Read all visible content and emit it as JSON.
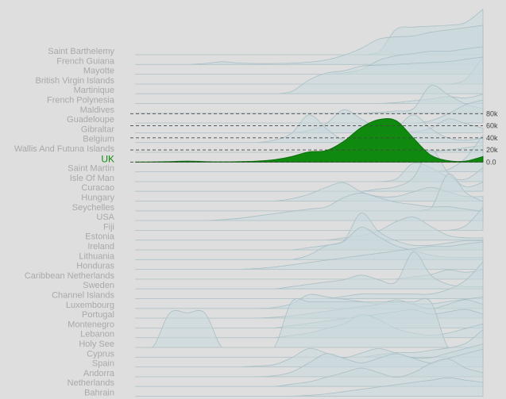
{
  "chart_data": {
    "type": "area",
    "highlighted": "UK",
    "y_ticks": [
      "0.0",
      "20k",
      "40k",
      "60k",
      "80k"
    ],
    "y_tick_values": [
      0,
      20000,
      40000,
      60000,
      80000
    ],
    "colors": {
      "background": "#dedede",
      "ridge": "#c9d9dd",
      "ridge_line": "#a9bfc5",
      "highlight": "#0f8a0f",
      "label": "#a9a9a9",
      "highlight_label": "#138a13"
    },
    "x": [
      0,
      0.05,
      0.1,
      0.15,
      0.2,
      0.25,
      0.3,
      0.35,
      0.4,
      0.45,
      0.5,
      0.55,
      0.6,
      0.65,
      0.7,
      0.75,
      0.8,
      0.85,
      0.9,
      0.95,
      1
    ],
    "series": [
      {
        "name": "Saint Barthelemy",
        "values": [
          0,
          0,
          0,
          0,
          0,
          0,
          0,
          0,
          0,
          0,
          0,
          0,
          0,
          0,
          0.05,
          0.55,
          0.6,
          0.62,
          0.64,
          0.7,
          0.99
        ]
      },
      {
        "name": "French Guiana",
        "values": [
          0,
          0,
          0,
          0,
          0.02,
          0.06,
          0.03,
          0.02,
          0.02,
          0.03,
          0.05,
          0.1,
          0.2,
          0.35,
          0.55,
          0.6,
          0.62,
          0.7,
          0.75,
          0.8,
          0.85
        ]
      },
      {
        "name": "Mayotte",
        "values": [
          0,
          0,
          0,
          0,
          0,
          0,
          0,
          0,
          0,
          0,
          0,
          0,
          0.03,
          0.1,
          0.3,
          0.4,
          0.45,
          0.5,
          0.5,
          0.55,
          0.6
        ]
      },
      {
        "name": "British Virgin Islands",
        "values": [
          0,
          0,
          0,
          0,
          0,
          0,
          0,
          0,
          0,
          0,
          0,
          0,
          0,
          0,
          0,
          0,
          0,
          0,
          0,
          0.1,
          0.6
        ]
      },
      {
        "name": "Martinique",
        "values": [
          0,
          0,
          0,
          0,
          0,
          0,
          0,
          0,
          0,
          0.05,
          0.3,
          0.45,
          0.5,
          0.6,
          0.62,
          0.64,
          0.66,
          0.68,
          0.7,
          0.75,
          0.8
        ]
      },
      {
        "name": "French Polynesia",
        "values": [
          0,
          0,
          0,
          0,
          0,
          0,
          0,
          0,
          0,
          0,
          0,
          0,
          0,
          0,
          0,
          0.02,
          0.06,
          0.1,
          0.15,
          0.12,
          0.2
        ]
      },
      {
        "name": "Maldives",
        "values": [
          0,
          0,
          0,
          0,
          0,
          0,
          0,
          0,
          0,
          0,
          0,
          0,
          0,
          0,
          0.02,
          0.05,
          0.1,
          0.6,
          0.4,
          0.2,
          0.1
        ]
      },
      {
        "name": "Guadeloupe",
        "values": [
          0,
          0,
          0,
          0,
          0,
          0,
          0,
          0,
          0,
          0,
          0,
          0,
          0,
          0,
          0,
          0,
          0,
          0.05,
          0.2,
          0.4,
          0.5
        ]
      },
      {
        "name": "Gibraltar",
        "values": [
          0,
          0,
          0,
          0,
          0,
          0,
          0,
          0,
          0,
          0,
          0.05,
          0.2,
          0.5,
          0.3,
          0.1,
          0.05,
          0.02,
          0.1,
          0.3,
          0.2,
          0.1
        ]
      },
      {
        "name": "Belgium",
        "values": [
          0,
          0,
          0,
          0,
          0,
          0,
          0,
          0,
          0.05,
          0.2,
          0.6,
          0.3,
          0.05,
          0.05,
          0.05,
          0.3,
          0.6,
          0.3,
          0.1,
          0.05,
          0.1
        ]
      },
      {
        "name": "Wallis And Futuna Islands",
        "values": [
          0,
          0,
          0,
          0,
          0,
          0,
          0,
          0,
          0,
          0,
          0,
          0,
          0,
          0,
          0,
          0,
          0,
          0.02,
          0.05,
          0.1,
          0.15
        ]
      },
      {
        "name": "UK",
        "values": [
          0,
          0.003,
          0.01,
          0.02,
          0.01,
          0.005,
          0.01,
          0.02,
          0.05,
          0.12,
          0.22,
          0.25,
          0.45,
          0.75,
          0.92,
          0.9,
          0.52,
          0.15,
          0.03,
          0.02,
          0.12
        ]
      },
      {
        "name": "Saint Martin",
        "values": [
          0,
          0,
          0,
          0,
          0,
          0,
          0,
          0,
          0,
          0,
          0,
          0,
          0,
          0,
          0,
          0,
          0,
          0,
          0.05,
          0.3,
          0.8
        ]
      },
      {
        "name": "Isle Of Man",
        "values": [
          0,
          0,
          0,
          0,
          0,
          0,
          0,
          0,
          0,
          0,
          0,
          0,
          0,
          0,
          0,
          0.05,
          0.4,
          0.3,
          0.1,
          0.05,
          0.3
        ]
      },
      {
        "name": "Curacao",
        "values": [
          0,
          0,
          0,
          0,
          0,
          0,
          0,
          0,
          0,
          0,
          0,
          0,
          0,
          0,
          0.05,
          0.1,
          0.3,
          0.9,
          0.4,
          0.1,
          0.2
        ]
      },
      {
        "name": "Hungary",
        "values": [
          0,
          0,
          0,
          0,
          0,
          0,
          0,
          0,
          0,
          0.05,
          0.15,
          0.3,
          0.4,
          0.2,
          0.1,
          0.1,
          0.2,
          0.3,
          0.2,
          0.1,
          0.1
        ]
      },
      {
        "name": "Seychelles",
        "values": [
          0,
          0,
          0,
          0,
          0,
          0,
          0,
          0,
          0,
          0,
          0,
          0,
          0,
          0,
          0,
          0,
          0,
          0.05,
          0.8,
          0.4,
          0.2
        ]
      },
      {
        "name": "USA",
        "values": [
          0,
          0,
          0,
          0,
          0,
          0.02,
          0.05,
          0.1,
          0.15,
          0.2,
          0.25,
          0.3,
          0.5,
          0.6,
          0.5,
          0.4,
          0.35,
          0.3,
          0.3,
          0.25,
          0.2
        ]
      },
      {
        "name": "Fiji",
        "values": [
          0,
          0,
          0,
          0,
          0,
          0,
          0,
          0,
          0,
          0,
          0,
          0,
          0,
          0,
          0,
          0,
          0,
          0,
          0,
          0.1,
          0.5
        ]
      },
      {
        "name": "Estonia",
        "values": [
          0,
          0,
          0,
          0,
          0,
          0,
          0,
          0,
          0,
          0,
          0,
          0,
          0.05,
          0.1,
          0.2,
          0.4,
          0.5,
          0.3,
          0.1,
          0.05,
          0.05
        ]
      },
      {
        "name": "Ireland",
        "values": [
          0,
          0,
          0,
          0,
          0,
          0,
          0,
          0,
          0,
          0,
          0.05,
          0.1,
          0.2,
          0.8,
          0.4,
          0.2,
          0.1,
          0.1,
          0.15,
          0.2,
          0.2
        ]
      },
      {
        "name": "Lithuania",
        "values": [
          0,
          0,
          0,
          0,
          0,
          0,
          0,
          0,
          0,
          0,
          0.1,
          0.3,
          0.4,
          0.7,
          0.5,
          0.3,
          0.2,
          0.1,
          0.05,
          0.05,
          0.05
        ]
      },
      {
        "name": "Honduras",
        "values": [
          0,
          0,
          0,
          0,
          0,
          0,
          0,
          0.02,
          0.05,
          0.1,
          0.15,
          0.2,
          0.25,
          0.3,
          0.35,
          0.4,
          0.45,
          0.5,
          0.5,
          0.55,
          0.6
        ]
      },
      {
        "name": "Caribbean Netherlands",
        "values": [
          0,
          0,
          0,
          0,
          0,
          0,
          0,
          0,
          0,
          0,
          0,
          0,
          0,
          0,
          0,
          0,
          0.05,
          0.1,
          0.2,
          0.15,
          0.2
        ]
      },
      {
        "name": "Sweden",
        "values": [
          0,
          0,
          0,
          0,
          0,
          0,
          0,
          0,
          0,
          0.05,
          0.1,
          0.15,
          0.2,
          0.3,
          0.2,
          0.15,
          0.8,
          0.3,
          0.1,
          0.05,
          0.05
        ]
      },
      {
        "name": "Channel Islands",
        "values": [
          0,
          0,
          0,
          0,
          0,
          0,
          0,
          0,
          0,
          0,
          0,
          0,
          0.05,
          0.1,
          0.1,
          0.1,
          0.1,
          0.1,
          0.2,
          0.4,
          0.8
        ]
      },
      {
        "name": "Luxembourg",
        "values": [
          0,
          0,
          0,
          0,
          0,
          0,
          0,
          0,
          0.02,
          0.1,
          0.3,
          0.25,
          0.2,
          0.15,
          0.1,
          0.1,
          0.1,
          0.1,
          0.15,
          0.2,
          0.25
        ]
      },
      {
        "name": "Portugal",
        "values": [
          0,
          0,
          0,
          0,
          0,
          0,
          0,
          0,
          0.02,
          0.05,
          0.1,
          0.15,
          0.2,
          0.25,
          0.3,
          0.4,
          0.3,
          0.2,
          0.3,
          0.4,
          0.3
        ]
      },
      {
        "name": "Montenegro",
        "values": [
          0,
          0,
          0,
          0,
          0,
          0,
          0,
          0,
          0,
          0.05,
          0.1,
          0.15,
          0.2,
          0.25,
          0.3,
          0.35,
          0.4,
          0.3,
          0.35,
          0.4,
          0.3
        ]
      },
      {
        "name": "Lebanon",
        "values": [
          0,
          0,
          0,
          0,
          0,
          0,
          0,
          0,
          0,
          0.05,
          0.1,
          0.2,
          0.3,
          0.5,
          0.4,
          0.2,
          0.1,
          0.05,
          0.1,
          0.2,
          0.3
        ]
      },
      {
        "name": "Holy See",
        "values": [
          0,
          0,
          0.75,
          0.75,
          0.75,
          0,
          0,
          0,
          0,
          0.99,
          0.99,
          0.99,
          0.99,
          0.99,
          0.99,
          0.99,
          0.99,
          0.99,
          0,
          0,
          0
        ]
      },
      {
        "name": "Cyprus",
        "values": [
          0,
          0,
          0,
          0,
          0,
          0,
          0,
          0,
          0,
          0,
          0,
          0,
          0,
          0,
          0.05,
          0.1,
          0.1,
          0.15,
          0.2,
          0.3,
          0.6
        ]
      },
      {
        "name": "Spain",
        "values": [
          0,
          0,
          0,
          0,
          0,
          0,
          0,
          0.02,
          0.05,
          0.2,
          0.4,
          0.3,
          0.2,
          0.3,
          0.4,
          0.3,
          0.2,
          0.2,
          0.3,
          0.4,
          0.5
        ]
      },
      {
        "name": "Andorra",
        "values": [
          0,
          0,
          0,
          0,
          0,
          0,
          0,
          0,
          0.02,
          0.1,
          0.3,
          0.5,
          0.4,
          0.3,
          0.4,
          0.5,
          0.4,
          0.3,
          0.4,
          0.5,
          0.6
        ]
      },
      {
        "name": "Netherlands",
        "values": [
          0,
          0,
          0,
          0,
          0,
          0,
          0,
          0,
          0,
          0.05,
          0.1,
          0.2,
          0.3,
          0.4,
          0.3,
          0.2,
          0.3,
          0.5,
          0.6,
          0.4,
          0.3
        ]
      },
      {
        "name": "Bahrain",
        "values": [
          0,
          0,
          0,
          0,
          0,
          0,
          0,
          0,
          0,
          0,
          0.02,
          0.05,
          0.1,
          0.15,
          0.2,
          0.25,
          0.3,
          0.35,
          0.4,
          0.35,
          0.3
        ]
      }
    ]
  }
}
